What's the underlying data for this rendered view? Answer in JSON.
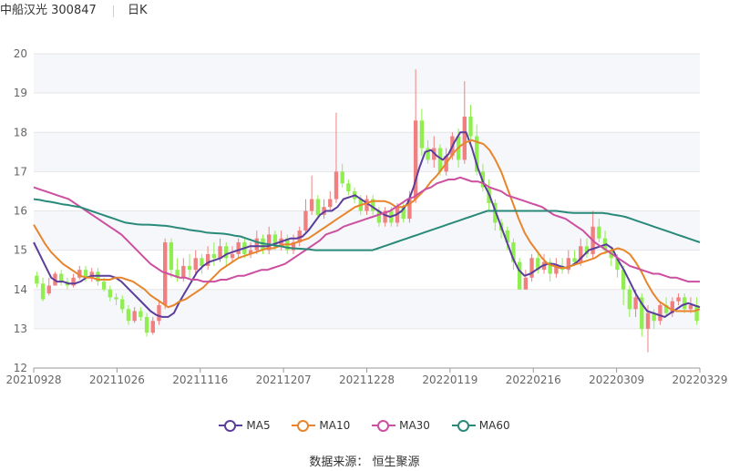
{
  "header": {
    "stock": "中船汉光 300847",
    "period": "日K"
  },
  "source": "数据来源： 恒生聚源",
  "colors": {
    "up": "#f08080",
    "down": "#90ee50",
    "grid": "#e6e6e6",
    "band": "#f6f7fa",
    "axis": "#666666"
  },
  "chart_data": {
    "type": "candlestick",
    "yticks": [
      12,
      13,
      14,
      15,
      16,
      17,
      18,
      19,
      20
    ],
    "ylim": [
      12,
      20
    ],
    "xticks": [
      "20210928",
      "20211026",
      "20211116",
      "20211207",
      "20211228",
      "20220119",
      "20220216",
      "20220309",
      "20220329"
    ],
    "candles": [
      [
        14.35,
        14.15,
        14.45,
        14.05
      ],
      [
        14.15,
        13.75,
        14.3,
        13.7
      ],
      [
        13.9,
        14.1,
        14.3,
        13.85
      ],
      [
        14.1,
        14.4,
        14.45,
        14.1
      ],
      [
        14.4,
        14.2,
        14.5,
        14.1
      ],
      [
        14.2,
        14.1,
        14.3,
        14.0
      ],
      [
        14.1,
        14.3,
        14.4,
        14.05
      ],
      [
        14.3,
        14.5,
        14.6,
        14.25
      ],
      [
        14.5,
        14.3,
        14.6,
        14.2
      ],
      [
        14.3,
        14.45,
        14.55,
        14.2
      ],
      [
        14.45,
        14.2,
        14.55,
        14.1
      ],
      [
        14.2,
        14.0,
        14.3,
        13.95
      ],
      [
        14.0,
        13.8,
        14.1,
        13.7
      ],
      [
        13.8,
        13.75,
        13.9,
        13.6
      ],
      [
        13.75,
        13.5,
        13.85,
        13.4
      ],
      [
        13.5,
        13.2,
        13.6,
        13.1
      ],
      [
        13.2,
        13.45,
        13.55,
        13.15
      ],
      [
        13.45,
        13.3,
        13.55,
        13.2
      ],
      [
        13.3,
        12.9,
        13.4,
        12.8
      ],
      [
        12.9,
        13.2,
        13.3,
        12.85
      ],
      [
        13.2,
        13.6,
        13.7,
        13.1
      ],
      [
        13.6,
        15.2,
        15.3,
        13.5
      ],
      [
        15.2,
        14.5,
        15.3,
        14.3
      ],
      [
        14.5,
        14.3,
        14.8,
        14.2
      ],
      [
        14.3,
        14.6,
        14.8,
        14.2
      ],
      [
        14.6,
        14.5,
        14.9,
        14.3
      ],
      [
        14.5,
        14.8,
        15.0,
        14.4
      ],
      [
        14.8,
        14.6,
        14.9,
        14.4
      ],
      [
        14.6,
        14.9,
        15.1,
        14.5
      ],
      [
        14.9,
        14.8,
        15.2,
        14.6
      ],
      [
        14.8,
        15.1,
        15.3,
        14.7
      ],
      [
        15.1,
        14.8,
        15.2,
        14.6
      ],
      [
        14.8,
        14.9,
        15.1,
        14.7
      ],
      [
        14.9,
        15.2,
        15.3,
        14.8
      ],
      [
        15.2,
        14.9,
        15.3,
        14.8
      ],
      [
        14.9,
        15.0,
        15.2,
        14.8
      ],
      [
        15.0,
        15.3,
        15.5,
        14.9
      ],
      [
        15.3,
        15.0,
        15.4,
        14.9
      ],
      [
        15.0,
        15.4,
        15.6,
        14.9
      ],
      [
        15.4,
        15.1,
        15.5,
        15.0
      ],
      [
        15.1,
        15.3,
        15.5,
        15.0
      ],
      [
        15.3,
        15.0,
        15.4,
        14.9
      ],
      [
        15.0,
        15.2,
        15.4,
        14.9
      ],
      [
        15.2,
        15.5,
        15.6,
        15.1
      ],
      [
        15.5,
        16.0,
        16.3,
        15.4
      ],
      [
        16.0,
        16.3,
        16.9,
        15.9
      ],
      [
        16.3,
        15.9,
        16.4,
        15.8
      ],
      [
        15.9,
        16.1,
        16.3,
        15.8
      ],
      [
        16.1,
        16.3,
        16.5,
        16.0
      ],
      [
        16.3,
        17.0,
        18.5,
        16.2
      ],
      [
        17.0,
        16.7,
        17.2,
        16.6
      ],
      [
        16.7,
        16.5,
        16.8,
        16.4
      ],
      [
        16.5,
        16.3,
        16.6,
        16.2
      ],
      [
        16.3,
        16.0,
        16.4,
        15.9
      ],
      [
        16.0,
        16.3,
        16.4,
        15.9
      ],
      [
        16.3,
        16.0,
        16.4,
        15.9
      ],
      [
        16.0,
        15.7,
        16.1,
        15.6
      ],
      [
        15.7,
        16.0,
        16.1,
        15.6
      ],
      [
        16.0,
        15.7,
        16.1,
        15.6
      ],
      [
        15.7,
        16.1,
        16.2,
        15.6
      ],
      [
        16.1,
        15.8,
        16.2,
        15.7
      ],
      [
        15.8,
        16.3,
        16.5,
        15.7
      ],
      [
        16.3,
        18.3,
        19.6,
        16.2
      ],
      [
        18.3,
        17.6,
        18.6,
        17.4
      ],
      [
        17.6,
        17.3,
        17.8,
        17.2
      ],
      [
        17.3,
        17.6,
        17.9,
        17.1
      ],
      [
        17.6,
        17.0,
        17.7,
        16.9
      ],
      [
        17.0,
        17.4,
        17.6,
        16.9
      ],
      [
        17.4,
        17.9,
        18.0,
        17.3
      ],
      [
        17.9,
        17.3,
        18.1,
        17.1
      ],
      [
        17.3,
        18.4,
        19.3,
        17.2
      ],
      [
        18.4,
        17.9,
        18.7,
        17.7
      ],
      [
        17.9,
        17.0,
        18.2,
        16.9
      ],
      [
        17.0,
        16.6,
        17.2,
        16.5
      ],
      [
        16.6,
        16.2,
        16.8,
        16.0
      ],
      [
        16.2,
        15.7,
        16.3,
        15.5
      ],
      [
        15.7,
        15.5,
        15.8,
        15.3
      ],
      [
        15.5,
        15.2,
        15.6,
        15.0
      ],
      [
        15.2,
        14.7,
        15.3,
        14.5
      ],
      [
        14.7,
        14.0,
        14.8,
        14.0
      ],
      [
        14.0,
        14.3,
        14.5,
        14.0
      ],
      [
        14.3,
        14.8,
        14.9,
        14.2
      ],
      [
        14.8,
        14.5,
        14.9,
        14.4
      ],
      [
        14.5,
        14.7,
        14.9,
        14.4
      ],
      [
        14.7,
        14.4,
        14.8,
        14.2
      ],
      [
        14.4,
        14.6,
        14.8,
        14.3
      ],
      [
        14.6,
        14.5,
        14.8,
        14.4
      ],
      [
        14.5,
        14.8,
        15.0,
        14.4
      ],
      [
        14.8,
        14.7,
        15.0,
        14.6
      ],
      [
        14.7,
        15.1,
        15.3,
        14.6
      ],
      [
        15.1,
        14.9,
        15.3,
        14.8
      ],
      [
        14.9,
        15.6,
        16.0,
        14.8
      ],
      [
        15.6,
        15.3,
        15.8,
        15.2
      ],
      [
        15.3,
        15.0,
        15.5,
        14.9
      ],
      [
        15.0,
        14.8,
        15.1,
        14.6
      ],
      [
        14.8,
        14.5,
        14.9,
        14.3
      ],
      [
        14.5,
        14.0,
        14.6,
        13.6
      ],
      [
        14.0,
        13.5,
        14.1,
        13.3
      ],
      [
        13.5,
        13.8,
        14.0,
        13.3
      ],
      [
        13.8,
        13.0,
        13.9,
        12.8
      ],
      [
        13.0,
        13.4,
        13.6,
        12.4
      ],
      [
        13.4,
        13.2,
        13.5,
        13.0
      ],
      [
        13.2,
        13.6,
        13.7,
        13.1
      ],
      [
        13.6,
        13.4,
        13.8,
        13.3
      ],
      [
        13.4,
        13.7,
        13.8,
        13.3
      ],
      [
        13.7,
        13.8,
        13.9,
        13.6
      ],
      [
        13.8,
        13.5,
        13.9,
        13.4
      ],
      [
        13.5,
        13.6,
        13.8,
        13.4
      ],
      [
        13.6,
        13.2,
        13.8,
        13.1
      ]
    ],
    "series": [
      {
        "name": "MA5",
        "color": "#5b3e9b",
        "values": [
          15.2,
          14.9,
          14.6,
          14.3,
          14.2,
          14.2,
          14.15,
          14.15,
          14.2,
          14.3,
          14.35,
          14.35,
          14.35,
          14.35,
          14.3,
          14.2,
          14.05,
          13.9,
          13.75,
          13.6,
          13.45,
          13.35,
          13.3,
          13.3,
          13.4,
          13.7,
          13.95,
          14.2,
          14.45,
          14.6,
          14.7,
          14.75,
          14.8,
          14.9,
          14.95,
          15.0,
          15.05,
          15.1,
          15.1,
          15.1,
          15.1,
          15.15,
          15.2,
          15.25,
          15.3,
          15.3,
          15.35,
          15.5,
          15.7,
          15.9,
          16.0,
          16.0,
          16.1,
          16.3,
          16.35,
          16.4,
          16.3,
          16.2,
          16.1,
          16.0,
          15.9,
          15.85,
          15.9,
          16.0,
          16.2,
          16.6,
          17.1,
          17.5,
          17.55,
          17.4,
          17.3,
          17.45,
          17.75,
          18.0,
          18.0,
          17.6,
          17.1,
          16.7,
          16.4,
          16.0,
          15.6,
          15.2,
          14.8,
          14.5,
          14.35,
          14.4,
          14.5,
          14.6,
          14.65,
          14.65,
          14.6,
          14.55,
          14.6,
          14.7,
          14.85,
          15.0,
          15.05,
          15.1,
          15.15,
          15.05,
          14.75,
          14.5,
          14.2,
          13.9,
          13.65,
          13.45,
          13.4,
          13.35,
          13.3,
          13.4,
          13.5,
          13.6,
          13.65,
          13.6,
          13.55
        ]
      },
      {
        "name": "MA10",
        "color": "#e8852c",
        "values": [
          15.65,
          15.4,
          15.15,
          14.95,
          14.8,
          14.65,
          14.55,
          14.45,
          14.35,
          14.3,
          14.3,
          14.25,
          14.25,
          14.25,
          14.3,
          14.3,
          14.25,
          14.2,
          14.1,
          14.0,
          13.85,
          13.75,
          13.65,
          13.55,
          13.6,
          13.7,
          13.75,
          13.85,
          13.95,
          14.05,
          14.2,
          14.35,
          14.5,
          14.6,
          14.7,
          14.8,
          14.85,
          14.9,
          14.95,
          15.0,
          15.05,
          15.05,
          15.1,
          15.15,
          15.15,
          15.2,
          15.25,
          15.3,
          15.4,
          15.5,
          15.6,
          15.7,
          15.8,
          15.9,
          16.0,
          16.1,
          16.15,
          16.2,
          16.25,
          16.25,
          16.25,
          16.2,
          16.1,
          16.1,
          16.15,
          16.25,
          16.4,
          16.55,
          16.75,
          16.9,
          17.1,
          17.3,
          17.5,
          17.65,
          17.75,
          17.8,
          17.75,
          17.7,
          17.55,
          17.3,
          17.0,
          16.6,
          16.2,
          15.8,
          15.45,
          15.2,
          15.0,
          14.8,
          14.65,
          14.6,
          14.55,
          14.55,
          14.6,
          14.65,
          14.7,
          14.75,
          14.8,
          14.9,
          14.95,
          15.0,
          15.05,
          15.0,
          14.9,
          14.7,
          14.45,
          14.15,
          13.9,
          13.7,
          13.6,
          13.5,
          13.45,
          13.45,
          13.45,
          13.45,
          13.5
        ]
      },
      {
        "name": "MA30",
        "color": "#cc4fa0",
        "values": [
          16.6,
          16.55,
          16.5,
          16.45,
          16.4,
          16.35,
          16.3,
          16.2,
          16.1,
          16.0,
          15.9,
          15.8,
          15.7,
          15.6,
          15.5,
          15.4,
          15.25,
          15.1,
          14.95,
          14.8,
          14.65,
          14.55,
          14.45,
          14.4,
          14.35,
          14.3,
          14.3,
          14.25,
          14.25,
          14.2,
          14.2,
          14.2,
          14.25,
          14.25,
          14.3,
          14.35,
          14.35,
          14.4,
          14.45,
          14.5,
          14.5,
          14.55,
          14.6,
          14.65,
          14.75,
          14.85,
          14.95,
          15.05,
          15.15,
          15.25,
          15.4,
          15.45,
          15.5,
          15.6,
          15.65,
          15.7,
          15.75,
          15.8,
          15.85,
          15.9,
          15.95,
          16.0,
          16.1,
          16.2,
          16.3,
          16.35,
          16.45,
          16.55,
          16.6,
          16.7,
          16.75,
          16.8,
          16.8,
          16.85,
          16.8,
          16.75,
          16.75,
          16.7,
          16.6,
          16.55,
          16.5,
          16.4,
          16.35,
          16.3,
          16.25,
          16.2,
          16.15,
          16.1,
          16.0,
          15.9,
          15.85,
          15.8,
          15.7,
          15.6,
          15.5,
          15.35,
          15.2,
          15.1,
          15.0,
          14.9,
          14.8,
          14.7,
          14.6,
          14.55,
          14.5,
          14.45,
          14.4,
          14.4,
          14.35,
          14.3,
          14.3,
          14.25,
          14.2,
          14.2,
          14.2
        ]
      },
      {
        "name": "MA60",
        "color": "#2a8a7a",
        "values": [
          16.3,
          16.28,
          16.25,
          16.23,
          16.2,
          16.17,
          16.15,
          16.12,
          16.1,
          16.05,
          16.0,
          15.95,
          15.9,
          15.85,
          15.8,
          15.75,
          15.7,
          15.68,
          15.66,
          15.65,
          15.65,
          15.64,
          15.63,
          15.62,
          15.6,
          15.57,
          15.55,
          15.52,
          15.5,
          15.48,
          15.45,
          15.44,
          15.43,
          15.42,
          15.4,
          15.37,
          15.35,
          15.3,
          15.25,
          15.2,
          15.17,
          15.15,
          15.12,
          15.1,
          15.07,
          15.05,
          15.04,
          15.03,
          15.02,
          15.0,
          15.0,
          15.0,
          15.0,
          15.0,
          15.0,
          15.0,
          15.0,
          15.0,
          15.0,
          15.0,
          15.05,
          15.1,
          15.15,
          15.2,
          15.25,
          15.3,
          15.35,
          15.4,
          15.45,
          15.5,
          15.55,
          15.6,
          15.65,
          15.7,
          15.75,
          15.8,
          15.85,
          15.9,
          15.95,
          16.0,
          16.0,
          16.0,
          16.0,
          16.0,
          16.0,
          16.0,
          16.0,
          16.0,
          16.0,
          16.0,
          16.0,
          16.0,
          15.98,
          15.96,
          15.95,
          15.95,
          15.95,
          15.95,
          15.95,
          15.95,
          15.93,
          15.9,
          15.88,
          15.85,
          15.8,
          15.75,
          15.7,
          15.65,
          15.6,
          15.55,
          15.5,
          15.45,
          15.4,
          15.35,
          15.3,
          15.25,
          15.2
        ]
      }
    ]
  }
}
